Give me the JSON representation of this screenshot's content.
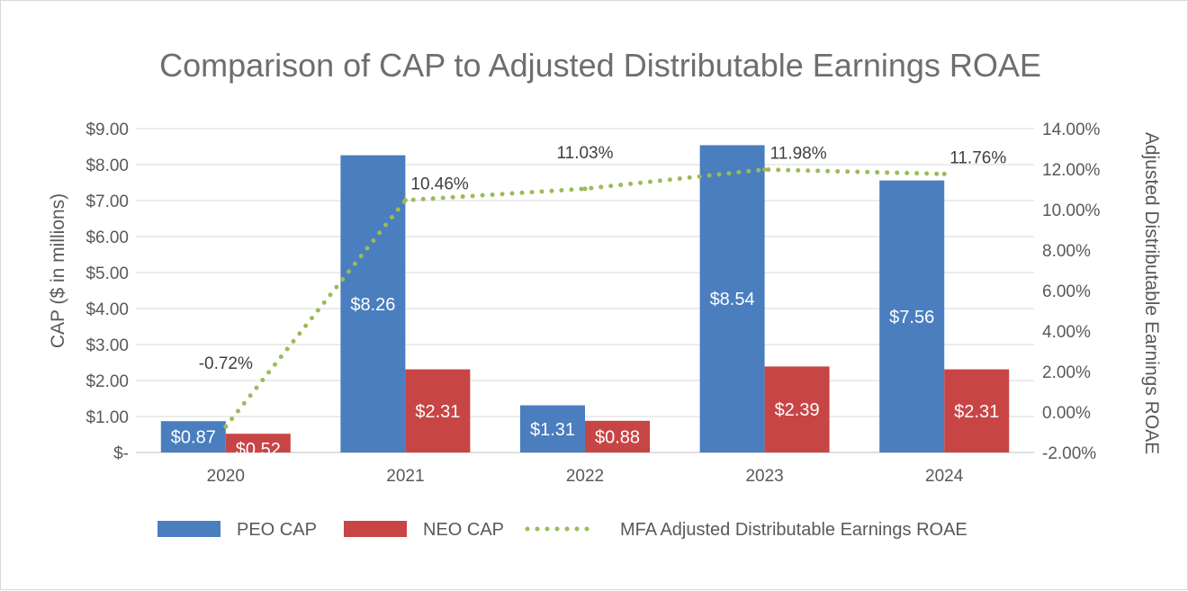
{
  "chart_data": {
    "type": "bar",
    "title": "Comparison of CAP to Adjusted Distributable Earnings ROAE",
    "categories": [
      "2020",
      "2021",
      "2022",
      "2023",
      "2024"
    ],
    "y_left": {
      "label": "CAP ($ in millions)",
      "range": [
        0,
        9
      ],
      "ticks": [
        0,
        1,
        2,
        3,
        4,
        5,
        6,
        7,
        8,
        9
      ],
      "tick_labels": [
        "$-",
        "$1.00",
        "$2.00",
        "$3.00",
        "$4.00",
        "$5.00",
        "$6.00",
        "$7.00",
        "$8.00",
        "$9.00"
      ]
    },
    "y_right": {
      "label": "Adjusted Distributable Earnings ROAE",
      "range": [
        -2,
        14
      ],
      "ticks": [
        -2,
        0,
        2,
        4,
        6,
        8,
        10,
        12,
        14
      ],
      "tick_labels": [
        "-2.00%",
        "0.00%",
        "2.00%",
        "4.00%",
        "6.00%",
        "8.00%",
        "10.00%",
        "12.00%",
        "14.00%"
      ]
    },
    "series": [
      {
        "name": "PEO CAP",
        "kind": "bar",
        "axis": "left",
        "color": "#4a7ebf",
        "values": [
          0.87,
          8.26,
          1.31,
          8.54,
          7.56
        ],
        "labels": [
          "$0.87",
          "$8.26",
          "$1.31",
          "$8.54",
          "$7.56"
        ]
      },
      {
        "name": "NEO CAP",
        "kind": "bar",
        "axis": "left",
        "color": "#c84545",
        "values": [
          0.52,
          2.31,
          0.88,
          2.39,
          2.31
        ],
        "labels": [
          "$0.52",
          "$2.31",
          "$0.88",
          "$2.39",
          "$2.31"
        ]
      },
      {
        "name": "MFA Adjusted Distributable Earnings ROAE",
        "kind": "line",
        "style": "dotted",
        "axis": "right",
        "color": "#9bbb59",
        "values": [
          -0.72,
          10.46,
          11.03,
          11.98,
          11.76
        ],
        "labels": [
          "-0.72%",
          "10.46%",
          "11.03%",
          "11.98%",
          "11.76%"
        ]
      }
    ],
    "grid": true,
    "legend_position": "bottom"
  }
}
